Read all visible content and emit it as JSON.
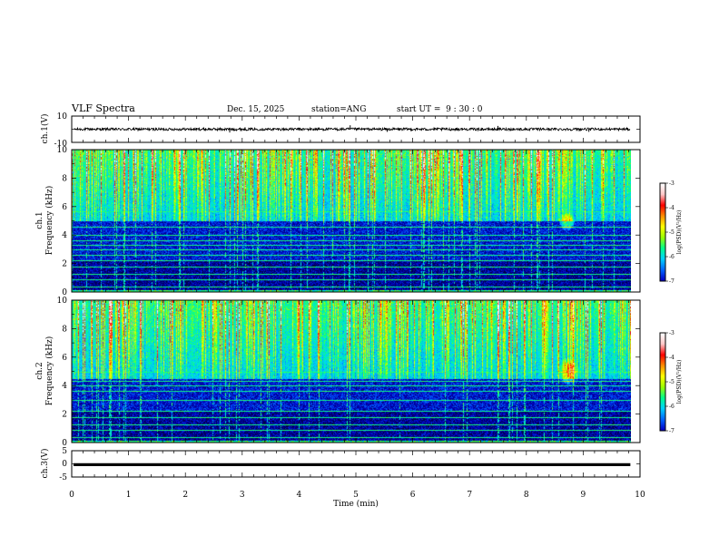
{
  "header": {
    "title": "VLF Spectra",
    "date": "Dec. 15, 2025",
    "station": "station=ANG",
    "start": "start UT =  9 : 30 : 0"
  },
  "colors": {
    "bg": "#ffffff",
    "axis": "#000000",
    "colormap": [
      "#000000",
      "#00004a",
      "#0000c8",
      "#0066ff",
      "#00d2ff",
      "#00ff8c",
      "#9cff00",
      "#ffff00",
      "#ff8c00",
      "#ff0000",
      "#ffc8c8",
      "#ffffff"
    ]
  },
  "chart_data": [
    {
      "type": "line",
      "name": "ch1-waveform",
      "ylabel": "ch.1(V)",
      "ylim": [
        -10,
        10
      ],
      "yticks": [
        10,
        -10
      ],
      "baseline": 0,
      "noise_amplitude": 1.0,
      "spikes": [
        [
          2.78,
          -2.5
        ],
        [
          3.05,
          1.5
        ],
        [
          4.9,
          3.0
        ],
        [
          5.55,
          -2.0
        ],
        [
          7.5,
          2.5
        ],
        [
          9.1,
          -2.0
        ]
      ],
      "xlim": [
        0,
        9.83
      ]
    },
    {
      "type": "heatmap",
      "name": "ch1-spectrogram",
      "ylabel": "ch.1 Frequency (kHz)",
      "ylim": [
        0,
        10
      ],
      "yticks": [
        "0",
        "2",
        "4",
        "6",
        "8",
        "10"
      ],
      "xlim": [
        0,
        9.83
      ],
      "colorbar_label": "log(PSD)(V²/Hz)",
      "clim": [
        -7,
        -3
      ],
      "colorbar_ticks": [
        "-3",
        "-4",
        "-5",
        "-6",
        "-7"
      ],
      "horizontal_lines_khz": [
        0.4,
        0.9,
        1.3,
        1.8,
        2.2,
        2.6,
        3.0,
        3.3,
        3.6,
        4.0,
        4.6,
        5.7
      ],
      "burst_region": {
        "t": [
          8.55,
          8.85
        ],
        "f": [
          4.3,
          5.6
        ]
      },
      "noise_floor_khz": 5.0
    },
    {
      "type": "heatmap",
      "name": "ch2-spectrogram",
      "ylabel": "ch.2 Frequency (kHz)",
      "ylim": [
        0,
        10
      ],
      "yticks": [
        "0",
        "2",
        "4",
        "6",
        "8",
        "10"
      ],
      "xlim": [
        0,
        9.83
      ],
      "colorbar_label": "log(PSD)(V²/Hz)",
      "clim": [
        -7,
        -3
      ],
      "colorbar_ticks": [
        "-3",
        "-4",
        "-5",
        "-6",
        "-7"
      ],
      "horizontal_lines_khz": [
        0.4,
        0.9,
        1.3,
        1.8,
        2.2,
        3.0,
        3.6,
        4.0,
        4.3,
        5.0
      ],
      "burst_region": {
        "t": [
          8.55,
          8.9
        ],
        "f": [
          4.0,
          6.0
        ]
      },
      "noise_floor_khz": 4.5
    },
    {
      "type": "line",
      "name": "ch3-waveform",
      "ylabel": "ch.3(V)",
      "ylim": [
        -5,
        5
      ],
      "yticks": [
        "5",
        "0",
        "-5"
      ],
      "baseline": -0.3,
      "noise_amplitude": 0.1,
      "xlim": [
        0,
        9.83
      ]
    }
  ],
  "xaxis": {
    "label": "Time (min)",
    "ticks": [
      "0",
      "1",
      "2",
      "3",
      "4",
      "5",
      "6",
      "7",
      "8",
      "9",
      "10"
    ],
    "xlim": [
      0,
      10
    ]
  }
}
